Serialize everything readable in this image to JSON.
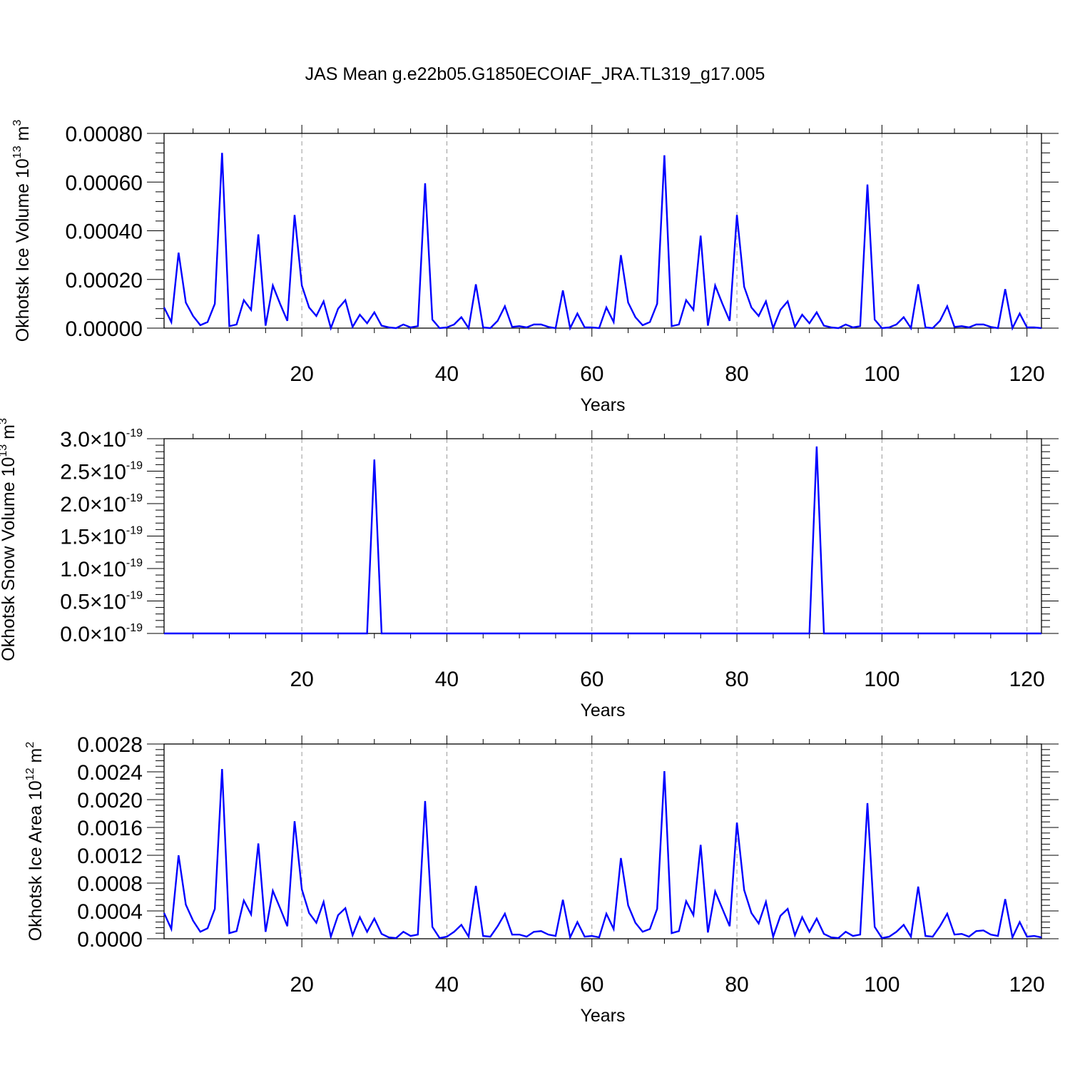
{
  "figure": {
    "title": "JAS Mean g.e22b05.G1850ECOIAF_JRA.TL319_g17.005"
  },
  "colors": {
    "line": "#0000ff",
    "frame": "#000000",
    "grid": "#999999"
  },
  "chart_data": [
    {
      "type": "line",
      "id": "ice-volume",
      "ylabel": "Okhotsk Ice Volume 10",
      "ylabel_sup": "13",
      "ylabel_unit": " m",
      "ylabel_unit_sup": "3",
      "xlabel": "Years",
      "xlim": [
        1,
        122
      ],
      "ylim": [
        0,
        0.0008
      ],
      "x_ticks": [
        20,
        40,
        60,
        80,
        100,
        120
      ],
      "x_tick_labels": [
        "20",
        "40",
        "60",
        "80",
        "100",
        "120"
      ],
      "y_ticks": [
        0,
        0.0002,
        0.0004,
        0.0006,
        0.0008
      ],
      "y_tick_labels": [
        "0.00000",
        "0.00020",
        "0.00040",
        "0.00060",
        "0.00080"
      ],
      "y_tick_sup": "",
      "grid": "vertical dashed at major x ticks",
      "x_start": 1,
      "values": [
        8.5e-05,
        2.5e-05,
        0.00031,
        0.000105,
        5e-05,
        1.2e-05,
        2.5e-05,
        0.0001,
        0.00072,
        8e-06,
        1.5e-05,
        0.000115,
        7.5e-05,
        0.000385,
        1e-05,
        0.000175,
        0.0001,
        3e-05,
        0.000465,
        0.000175,
        8.5e-05,
        5e-05,
        0.00011,
        0.0,
        8e-05,
        0.000115,
        5e-06,
        5.5e-05,
        2e-05,
        6.5e-05,
        1e-05,
        3e-06,
        0.0,
        1.5e-05,
        3e-06,
        8e-06,
        0.000595,
        3.5e-05,
        0.0,
        3e-06,
        1.5e-05,
        4.5e-05,
        0.0,
        0.00018,
        3e-06,
        0.0,
        3e-05,
        9e-05,
        5e-06,
        8e-06,
        3e-06,
        1.5e-05,
        1.5e-05,
        5e-06,
        0.0,
        0.000155,
        0.0,
        6e-05,
        3e-06,
        3e-06,
        0.0,
        8.5e-05,
        2.5e-05,
        0.0003,
        0.000105,
        4.5e-05,
        1.2e-05,
        2.5e-05,
        0.0001,
        0.00071,
        8e-06,
        1.5e-05,
        0.000115,
        7.5e-05,
        0.00038,
        1e-05,
        0.000175,
        0.0001,
        3e-05,
        0.000465,
        0.00017,
        8.5e-05,
        5e-05,
        0.00011,
        0.0,
        7.5e-05,
        0.00011,
        5e-06,
        5.5e-05,
        2e-05,
        6.5e-05,
        1e-05,
        3e-06,
        0.0,
        1.5e-05,
        3e-06,
        8e-06,
        0.00059,
        3.5e-05,
        0.0,
        3e-06,
        1.5e-05,
        4.5e-05,
        0.0,
        0.00018,
        3e-06,
        0.0,
        3e-05,
        9e-05,
        5e-06,
        8e-06,
        3e-06,
        1.5e-05,
        1.5e-05,
        5e-06,
        0.0,
        0.00016,
        0.0,
        6e-05,
        3e-06,
        3e-06,
        0.0
      ]
    },
    {
      "type": "line",
      "id": "snow-volume",
      "ylabel": "Okhotsk Snow Volume 10",
      "ylabel_sup": "13",
      "ylabel_unit": " m",
      "ylabel_unit_sup": "3",
      "xlabel": "Years",
      "xlim": [
        1,
        122
      ],
      "ylim": [
        0,
        3.0
      ],
      "x_ticks": [
        20,
        40,
        60,
        80,
        100,
        120
      ],
      "x_tick_labels": [
        "20",
        "40",
        "60",
        "80",
        "100",
        "120"
      ],
      "y_ticks": [
        0,
        0.5,
        1.0,
        1.5,
        2.0,
        2.5,
        3.0
      ],
      "y_tick_labels": [
        "0.0×10",
        "0.5×10",
        "1.0×10",
        "1.5×10",
        "2.0×10",
        "2.5×10",
        "3.0×10"
      ],
      "y_tick_sup": "-19",
      "grid": "vertical dashed at major x ticks",
      "x_start": 1,
      "values": [
        0,
        0,
        0,
        0,
        0,
        0,
        0,
        0,
        0,
        0,
        0,
        0,
        0,
        0,
        0,
        0,
        0,
        0,
        0,
        0,
        0,
        0,
        0,
        0,
        0,
        0,
        0,
        0,
        0,
        2.68,
        0,
        0,
        0,
        0,
        0,
        0,
        0,
        0,
        0,
        0,
        0,
        0,
        0,
        0,
        0,
        0,
        0,
        0,
        0,
        0,
        0,
        0,
        0,
        0,
        0,
        0,
        0,
        0,
        0,
        0,
        0,
        0,
        0,
        0,
        0,
        0,
        0,
        0,
        0,
        0,
        0,
        0,
        0,
        0,
        0,
        0,
        0,
        0,
        0,
        0,
        0,
        0,
        0,
        0,
        0,
        0,
        0,
        0,
        0,
        0,
        2.88,
        0,
        0,
        0,
        0,
        0,
        0,
        0,
        0,
        0,
        0,
        0,
        0,
        0,
        0,
        0,
        0,
        0,
        0,
        0,
        0,
        0,
        0,
        0,
        0,
        0,
        0,
        0,
        0,
        0,
        0,
        0
      ]
    },
    {
      "type": "line",
      "id": "ice-area",
      "ylabel": "Okhotsk Ice Area 10",
      "ylabel_sup": "12",
      "ylabel_unit": " m",
      "ylabel_unit_sup": "2",
      "xlabel": "Years",
      "xlim": [
        1,
        122
      ],
      "ylim": [
        0,
        0.0028
      ],
      "x_ticks": [
        20,
        40,
        60,
        80,
        100,
        120
      ],
      "x_tick_labels": [
        "20",
        "40",
        "60",
        "80",
        "100",
        "120"
      ],
      "y_ticks": [
        0,
        0.0004,
        0.0008,
        0.0012,
        0.0016,
        0.002,
        0.0024,
        0.0028
      ],
      "y_tick_labels": [
        "0.0000",
        "0.0004",
        "0.0008",
        "0.0012",
        "0.0016",
        "0.0020",
        "0.0024",
        "0.0028"
      ],
      "y_tick_sup": "",
      "grid": "vertical dashed at major x ticks",
      "x_start": 1,
      "values": [
        0.00037,
        0.00014,
        0.0012,
        0.00049,
        0.00026,
        0.0001,
        0.00015,
        0.00043,
        0.00244,
        8e-05,
        0.00011,
        0.00055,
        0.00035,
        0.00137,
        0.0001,
        0.00069,
        0.00044,
        0.00018,
        0.00169,
        0.00071,
        0.00037,
        0.00023,
        0.00053,
        3e-05,
        0.00034,
        0.00044,
        5e-05,
        0.00031,
        0.0001,
        0.00029,
        7e-05,
        2e-05,
        1e-05,
        0.0001,
        4e-05,
        6e-05,
        0.00198,
        0.00017,
        1e-05,
        3e-05,
        0.0001,
        0.0002,
        3e-05,
        0.00076,
        4e-05,
        3e-05,
        0.00018,
        0.00036,
        6e-05,
        6e-05,
        3e-05,
        0.0001,
        0.00011,
        6e-05,
        4e-05,
        0.00056,
        2e-05,
        0.00024,
        3e-05,
        4e-05,
        2e-05,
        0.00036,
        0.00014,
        0.00116,
        0.00048,
        0.00023,
        0.0001,
        0.00014,
        0.00043,
        0.00241,
        8e-05,
        0.00011,
        0.00054,
        0.00034,
        0.00135,
        9e-05,
        0.00068,
        0.00043,
        0.00018,
        0.00167,
        0.0007,
        0.00037,
        0.00022,
        0.00053,
        3e-05,
        0.00033,
        0.00043,
        5e-05,
        0.00031,
        0.0001,
        0.00029,
        7e-05,
        2e-05,
        1e-05,
        0.0001,
        4e-05,
        6e-05,
        0.00195,
        0.00017,
        1e-05,
        3e-05,
        0.0001,
        0.0002,
        3e-05,
        0.00075,
        4e-05,
        3e-05,
        0.00018,
        0.00036,
        6e-05,
        7e-05,
        3e-05,
        0.00011,
        0.00012,
        6e-05,
        4e-05,
        0.00057,
        2e-05,
        0.00024,
        3e-05,
        4e-05,
        2e-05
      ]
    }
  ]
}
